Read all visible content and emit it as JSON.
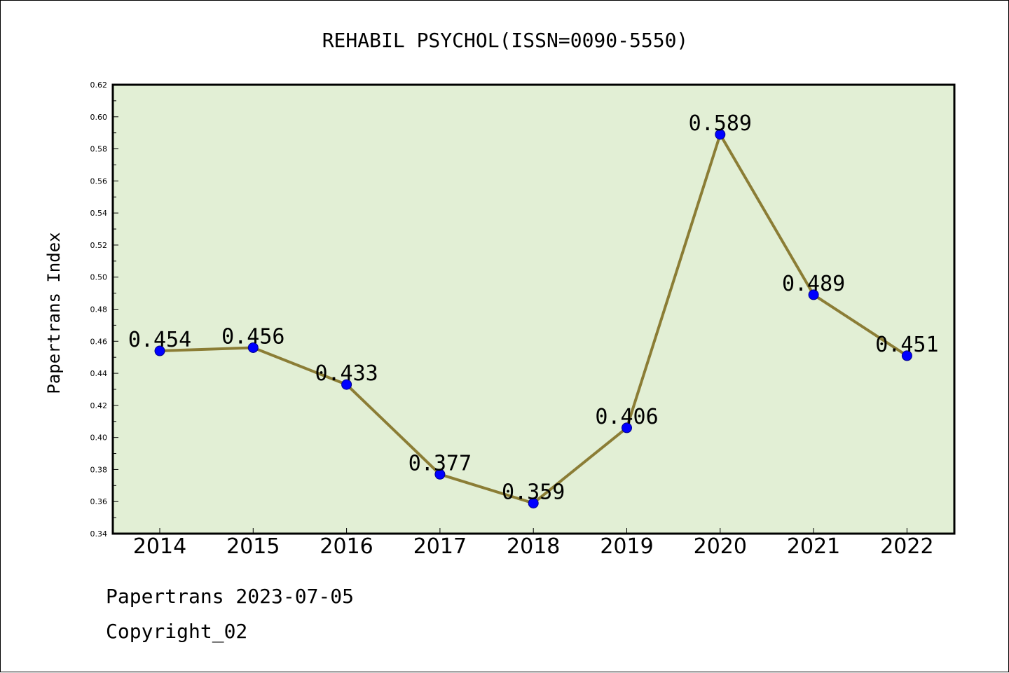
{
  "chart_data": {
    "type": "line",
    "title": "REHABIL PSYCHOL(ISSN=0090-5550)",
    "xlabel": "",
    "ylabel": "Papertrans Index",
    "categories": [
      "2014",
      "2015",
      "2016",
      "2017",
      "2018",
      "2019",
      "2020",
      "2021",
      "2022"
    ],
    "values": [
      0.454,
      0.456,
      0.433,
      0.377,
      0.359,
      0.406,
      0.589,
      0.489,
      0.451
    ],
    "data_labels": [
      "0.454",
      "0.456",
      "0.433",
      "0.377",
      "0.359",
      "0.406",
      "0.589",
      "0.489",
      "0.451"
    ],
    "ylim": [
      0.34,
      0.62
    ],
    "yticks": [
      "0.34",
      "0.36",
      "0.38",
      "0.40",
      "0.42",
      "0.44",
      "0.46",
      "0.48",
      "0.50",
      "0.52",
      "0.54",
      "0.56",
      "0.58",
      "0.60",
      "0.62"
    ],
    "grid": false,
    "legend": "none",
    "colors": {
      "plot_background": "#e2efd5",
      "line": "#8b7d35",
      "marker": "#0000ff"
    }
  },
  "footer": {
    "line1": "Papertrans 2023-07-05",
    "line2": "Copyright_02"
  }
}
